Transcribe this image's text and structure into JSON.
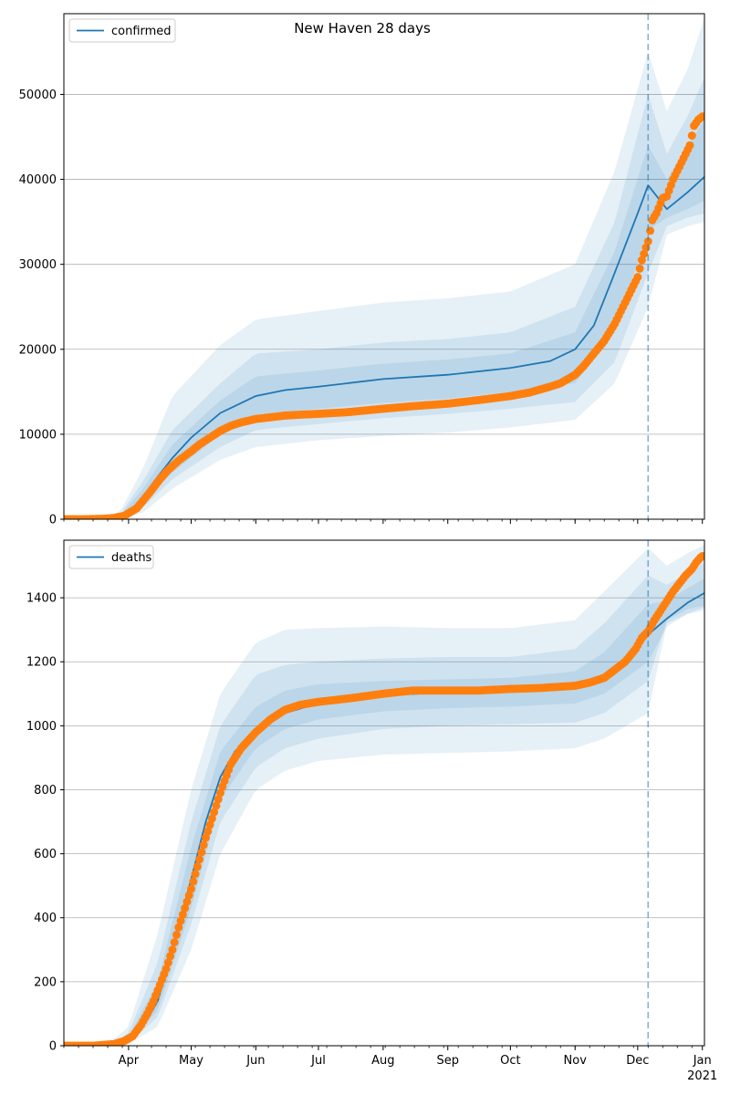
{
  "figure_title": "New Haven 28 days",
  "colors": {
    "model_line": "#1f77b4",
    "band": "#1f77b4",
    "observed": "#ff7f0e",
    "grid": "#b0b0b0",
    "forecast_line": "#1f77b4"
  },
  "chart_data": [
    {
      "type": "line",
      "name": "confirmed",
      "ylim": [
        0,
        59500
      ],
      "yticks": [
        0,
        10000,
        20000,
        30000,
        40000,
        50000
      ],
      "ytick_labels": [
        "0",
        "10000",
        "20000",
        "30000",
        "40000",
        "50000"
      ],
      "xlim": [
        "2020-03-01",
        "2021-01-02"
      ],
      "xticks": [
        "2020-04-01",
        "2020-05-01",
        "2020-06-01",
        "2020-07-01",
        "2020-08-01",
        "2020-09-01",
        "2020-10-01",
        "2020-11-01",
        "2020-12-01",
        "2021-01-01"
      ],
      "xtick_labels": [
        "Apr",
        "May",
        "Jun",
        "Jul",
        "Aug",
        "Sep",
        "Oct",
        "Nov",
        "Dec",
        "Jan"
      ],
      "xtick_sublabels": [
        "",
        "",
        "",
        "",
        "",
        "",
        "",
        "",
        "",
        "2021"
      ],
      "grid": "horizontal",
      "legend": {
        "entries": [
          "confirmed"
        ],
        "placement": "upper-left"
      },
      "forecast_start": "2020-12-06",
      "model_median": {
        "x": [
          "2020-03-01",
          "2020-03-20",
          "2020-03-28",
          "2020-04-01",
          "2020-04-08",
          "2020-04-15",
          "2020-04-22",
          "2020-05-01",
          "2020-05-15",
          "2020-06-01",
          "2020-06-15",
          "2020-07-01",
          "2020-08-01",
          "2020-09-01",
          "2020-10-01",
          "2020-10-20",
          "2020-11-01",
          "2020-11-10",
          "2020-11-20",
          "2020-12-01",
          "2020-12-06",
          "2020-12-15",
          "2020-12-25",
          "2021-01-02"
        ],
        "y": [
          0,
          0,
          200,
          700,
          2700,
          5000,
          7200,
          9600,
          12500,
          14500,
          15200,
          15600,
          16500,
          17000,
          17800,
          18600,
          20000,
          22800,
          29000,
          36000,
          39300,
          36500,
          38500,
          40300
        ]
      },
      "bands": [
        {
          "name": "outer",
          "x": [
            "2020-03-01",
            "2020-03-20",
            "2020-03-28",
            "2020-04-08",
            "2020-04-22",
            "2020-05-15",
            "2020-06-01",
            "2020-07-01",
            "2020-08-01",
            "2020-09-01",
            "2020-10-01",
            "2020-11-01",
            "2020-11-20",
            "2020-12-06",
            "2020-12-15",
            "2020-12-25",
            "2021-01-02"
          ],
          "upper": [
            0,
            0,
            900,
            6000,
            14500,
            20500,
            23500,
            24500,
            25500,
            26000,
            26800,
            30000,
            41000,
            55000,
            48000,
            53000,
            59000
          ],
          "lower": [
            0,
            0,
            0,
            800,
            3600,
            7000,
            8500,
            9300,
            9800,
            10200,
            10800,
            11700,
            16000,
            25000,
            33500,
            34500,
            35000
          ]
        },
        {
          "name": "middle",
          "x": [
            "2020-03-01",
            "2020-03-20",
            "2020-03-28",
            "2020-04-08",
            "2020-04-22",
            "2020-05-15",
            "2020-06-01",
            "2020-07-01",
            "2020-08-01",
            "2020-09-01",
            "2020-10-01",
            "2020-11-01",
            "2020-11-20",
            "2020-12-06",
            "2020-12-15",
            "2020-12-25",
            "2021-01-02"
          ],
          "upper": [
            0,
            0,
            600,
            4500,
            10500,
            16000,
            19500,
            20000,
            20800,
            21200,
            22000,
            25000,
            35000,
            50000,
            43000,
            47500,
            52000
          ],
          "lower": [
            0,
            0,
            50,
            1400,
            4700,
            8500,
            10500,
            11200,
            11900,
            12400,
            13000,
            13800,
            18500,
            29000,
            34500,
            35500,
            36000
          ]
        },
        {
          "name": "inner",
          "x": [
            "2020-03-01",
            "2020-03-20",
            "2020-03-28",
            "2020-04-08",
            "2020-04-22",
            "2020-05-15",
            "2020-06-01",
            "2020-07-01",
            "2020-08-01",
            "2020-09-01",
            "2020-10-01",
            "2020-11-01",
            "2020-11-20",
            "2020-12-06",
            "2020-12-15",
            "2020-12-25",
            "2021-01-02"
          ],
          "upper": [
            0,
            0,
            400,
            3600,
            8800,
            14000,
            16800,
            17500,
            18300,
            18800,
            19500,
            22000,
            31500,
            44000,
            40000,
            44000,
            47000
          ],
          "lower": [
            0,
            0,
            100,
            2000,
            5500,
            10000,
            12300,
            13000,
            13700,
            14200,
            15000,
            16000,
            22000,
            34000,
            35500,
            36500,
            37500
          ]
        }
      ],
      "observed": {
        "x": [
          "2020-03-01",
          "2020-03-10",
          "2020-03-20",
          "2020-03-25",
          "2020-03-30",
          "2020-04-01",
          "2020-04-05",
          "2020-04-08",
          "2020-04-12",
          "2020-04-16",
          "2020-04-20",
          "2020-04-25",
          "2020-05-01",
          "2020-05-05",
          "2020-05-10",
          "2020-05-15",
          "2020-05-20",
          "2020-05-25",
          "2020-06-01",
          "2020-06-08",
          "2020-06-15",
          "2020-06-22",
          "2020-07-01",
          "2020-07-15",
          "2020-08-01",
          "2020-08-15",
          "2020-09-01",
          "2020-09-15",
          "2020-10-01",
          "2020-10-10",
          "2020-10-20",
          "2020-10-25",
          "2020-11-01",
          "2020-11-05",
          "2020-11-10",
          "2020-11-15",
          "2020-11-20",
          "2020-11-25",
          "2020-11-28",
          "2020-12-01",
          "2020-12-03",
          "2020-12-06",
          "2020-12-08",
          "2020-12-10",
          "2020-12-13",
          "2020-12-15",
          "2020-12-18",
          "2020-12-21",
          "2020-12-24",
          "2020-12-26",
          "2020-12-28",
          "2020-12-30",
          "2021-01-01"
        ],
        "y": [
          0,
          0,
          50,
          150,
          400,
          700,
          1300,
          2200,
          3400,
          4700,
          5800,
          6900,
          8000,
          8800,
          9600,
          10400,
          11000,
          11400,
          11800,
          12000,
          12200,
          12300,
          12400,
          12600,
          13000,
          13300,
          13600,
          14000,
          14500,
          14900,
          15600,
          16000,
          17000,
          18000,
          19500,
          21000,
          23000,
          25500,
          27000,
          28500,
          30500,
          32700,
          35200,
          36000,
          37800,
          38000,
          40000,
          41500,
          43000,
          44000,
          46300,
          47000,
          47400
        ]
      }
    },
    {
      "type": "line",
      "name": "deaths",
      "ylim": [
        0,
        1580
      ],
      "yticks": [
        0,
        200,
        400,
        600,
        800,
        1000,
        1200,
        1400
      ],
      "ytick_labels": [
        "0",
        "200",
        "400",
        "600",
        "800",
        "1000",
        "1200",
        "1400"
      ],
      "xlim": [
        "2020-03-01",
        "2021-01-02"
      ],
      "xticks": [
        "2020-04-01",
        "2020-05-01",
        "2020-06-01",
        "2020-07-01",
        "2020-08-01",
        "2020-09-01",
        "2020-10-01",
        "2020-11-01",
        "2020-12-01",
        "2021-01-01"
      ],
      "xtick_labels": [
        "Apr",
        "May",
        "Jun",
        "Jul",
        "Aug",
        "Sep",
        "Oct",
        "Nov",
        "Dec",
        "Jan"
      ],
      "xtick_sublabels": [
        "",
        "",
        "",
        "",
        "",
        "",
        "",
        "",
        "",
        "2021"
      ],
      "grid": "horizontal",
      "legend": {
        "entries": [
          "deaths"
        ],
        "placement": "upper-left"
      },
      "forecast_start": "2020-12-06",
      "model_median": {
        "x": [
          "2020-03-01",
          "2020-03-25",
          "2020-04-01",
          "2020-04-08",
          "2020-04-15",
          "2020-04-22",
          "2020-05-01",
          "2020-05-08",
          "2020-05-15",
          "2020-05-22",
          "2020-06-01",
          "2020-06-15",
          "2020-07-01",
          "2020-08-01",
          "2020-09-01",
          "2020-10-01",
          "2020-11-01",
          "2020-11-15",
          "2020-12-01",
          "2020-12-06",
          "2020-12-15",
          "2020-12-25",
          "2021-01-02"
        ],
        "y": [
          0,
          5,
          15,
          60,
          140,
          300,
          520,
          700,
          840,
          920,
          980,
          1040,
          1070,
          1095,
          1105,
          1110,
          1125,
          1150,
          1240,
          1285,
          1335,
          1385,
          1415
        ]
      },
      "bands": [
        {
          "name": "outer",
          "x": [
            "2020-03-01",
            "2020-03-25",
            "2020-04-01",
            "2020-04-15",
            "2020-05-01",
            "2020-05-15",
            "2020-06-01",
            "2020-06-15",
            "2020-07-01",
            "2020-08-01",
            "2020-09-01",
            "2020-10-01",
            "2020-11-01",
            "2020-11-15",
            "2020-12-06",
            "2020-12-15",
            "2020-12-25",
            "2021-01-02"
          ],
          "upper": [
            0,
            20,
            60,
            350,
            800,
            1100,
            1260,
            1300,
            1305,
            1310,
            1305,
            1305,
            1330,
            1420,
            1555,
            1500,
            1540,
            1565
          ],
          "lower": [
            0,
            0,
            5,
            60,
            300,
            600,
            800,
            860,
            890,
            910,
            915,
            920,
            930,
            960,
            1040,
            1320,
            1350,
            1360
          ]
        },
        {
          "name": "middle",
          "x": [
            "2020-03-01",
            "2020-03-25",
            "2020-04-01",
            "2020-04-15",
            "2020-05-01",
            "2020-05-15",
            "2020-06-01",
            "2020-06-15",
            "2020-07-01",
            "2020-08-01",
            "2020-09-01",
            "2020-10-01",
            "2020-11-01",
            "2020-11-15",
            "2020-12-06",
            "2020-12-15",
            "2020-12-25",
            "2021-01-02"
          ],
          "upper": [
            0,
            12,
            40,
            260,
            700,
            1000,
            1160,
            1190,
            1200,
            1210,
            1215,
            1215,
            1240,
            1320,
            1470,
            1440,
            1480,
            1510
          ],
          "lower": [
            0,
            2,
            8,
            90,
            380,
            700,
            870,
            930,
            960,
            990,
            1000,
            1005,
            1010,
            1040,
            1140,
            1330,
            1365,
            1375
          ]
        },
        {
          "name": "inner",
          "x": [
            "2020-03-01",
            "2020-03-25",
            "2020-04-01",
            "2020-04-15",
            "2020-05-01",
            "2020-05-15",
            "2020-06-01",
            "2020-06-15",
            "2020-07-01",
            "2020-08-01",
            "2020-09-01",
            "2020-10-01",
            "2020-11-01",
            "2020-11-15",
            "2020-12-06",
            "2020-12-15",
            "2020-12-25",
            "2021-01-02"
          ],
          "upper": [
            0,
            8,
            28,
            200,
            620,
            920,
            1060,
            1110,
            1130,
            1140,
            1145,
            1150,
            1170,
            1230,
            1380,
            1390,
            1430,
            1460
          ],
          "lower": [
            0,
            3,
            10,
            110,
            430,
            770,
            930,
            990,
            1020,
            1045,
            1055,
            1060,
            1070,
            1100,
            1200,
            1310,
            1350,
            1370
          ]
        }
      ],
      "observed": {
        "x": [
          "2020-03-01",
          "2020-03-15",
          "2020-03-25",
          "2020-03-30",
          "2020-04-03",
          "2020-04-07",
          "2020-04-10",
          "2020-04-13",
          "2020-04-16",
          "2020-04-19",
          "2020-04-22",
          "2020-04-25",
          "2020-04-28",
          "2020-05-01",
          "2020-05-04",
          "2020-05-08",
          "2020-05-12",
          "2020-05-16",
          "2020-05-20",
          "2020-05-25",
          "2020-06-01",
          "2020-06-08",
          "2020-06-15",
          "2020-06-22",
          "2020-07-01",
          "2020-07-15",
          "2020-08-01",
          "2020-08-15",
          "2020-09-01",
          "2020-09-15",
          "2020-10-01",
          "2020-10-15",
          "2020-11-01",
          "2020-11-08",
          "2020-11-15",
          "2020-11-20",
          "2020-11-25",
          "2020-11-30",
          "2020-12-03",
          "2020-12-06",
          "2020-12-09",
          "2020-12-12",
          "2020-12-15",
          "2020-12-18",
          "2020-12-21",
          "2020-12-24",
          "2020-12-27",
          "2020-12-29",
          "2020-12-31",
          "2021-01-01"
        ],
        "y": [
          0,
          0,
          5,
          15,
          30,
          65,
          100,
          140,
          190,
          240,
          300,
          370,
          430,
          490,
          560,
          650,
          730,
          810,
          880,
          930,
          980,
          1020,
          1050,
          1065,
          1075,
          1085,
          1100,
          1110,
          1110,
          1110,
          1115,
          1118,
          1125,
          1135,
          1150,
          1175,
          1200,
          1240,
          1275,
          1295,
          1330,
          1360,
          1390,
          1420,
          1445,
          1470,
          1490,
          1510,
          1525,
          1530
        ]
      }
    }
  ]
}
